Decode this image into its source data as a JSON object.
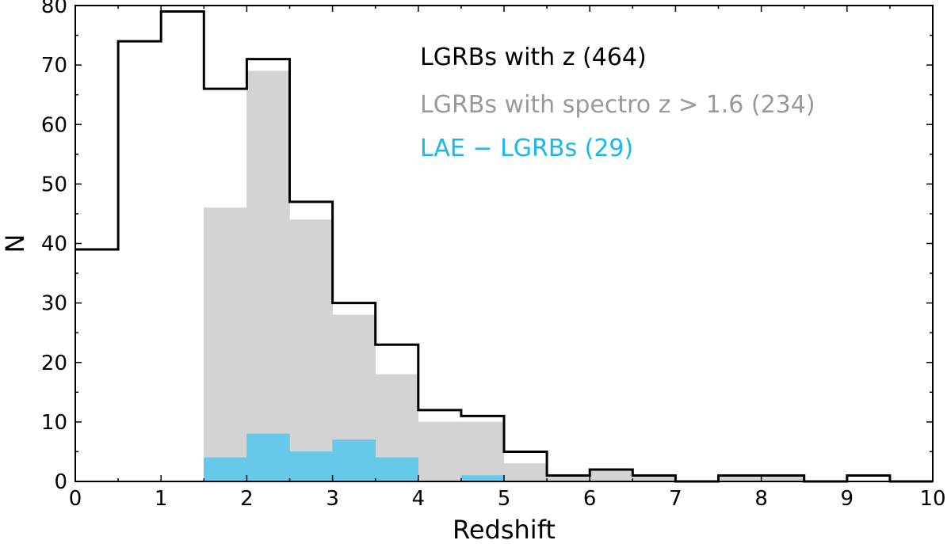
{
  "chart_data": {
    "type": "bar",
    "histogram": true,
    "xlabel": "Redshift",
    "ylabel": "N",
    "xlim": [
      0,
      10
    ],
    "ylim": [
      0,
      80
    ],
    "x_ticks": [
      0,
      1,
      2,
      3,
      4,
      5,
      6,
      7,
      8,
      9,
      10
    ],
    "y_ticks": [
      0,
      10,
      20,
      30,
      40,
      50,
      60,
      70,
      80
    ],
    "bin_edges": [
      0,
      0.5,
      1,
      1.5,
      2,
      2.5,
      3,
      3.5,
      4,
      4.5,
      5,
      5.5,
      6,
      6.5,
      7,
      7.5,
      8,
      8.5,
      9,
      9.5,
      10
    ],
    "legend_position": "upper-right",
    "series": [
      {
        "name": "LGRBs with z (464)",
        "style": "step-outline",
        "color": "#000000",
        "values": [
          39,
          74,
          79,
          66,
          71,
          47,
          30,
          23,
          12,
          11,
          5,
          1,
          2,
          1,
          0,
          1,
          1,
          0,
          1,
          0
        ]
      },
      {
        "name": "LGRBs with spectro z > 1.6 (234)",
        "style": "filled",
        "color": "#d3d3d3",
        "label_color": "#999999",
        "values": [
          0,
          0,
          0,
          46,
          69,
          44,
          28,
          18,
          10,
          10,
          3,
          1,
          2,
          1,
          0,
          1,
          1,
          0,
          0,
          0
        ]
      },
      {
        "name": "LAE − LGRBs (29)",
        "style": "filled",
        "color": "#66c9ea",
        "label_color": "#17b8ee",
        "values": [
          0,
          0,
          0,
          4,
          8,
          5,
          7,
          4,
          0,
          1,
          0,
          0,
          0,
          0,
          0,
          0,
          0,
          0,
          0,
          0
        ]
      }
    ]
  }
}
